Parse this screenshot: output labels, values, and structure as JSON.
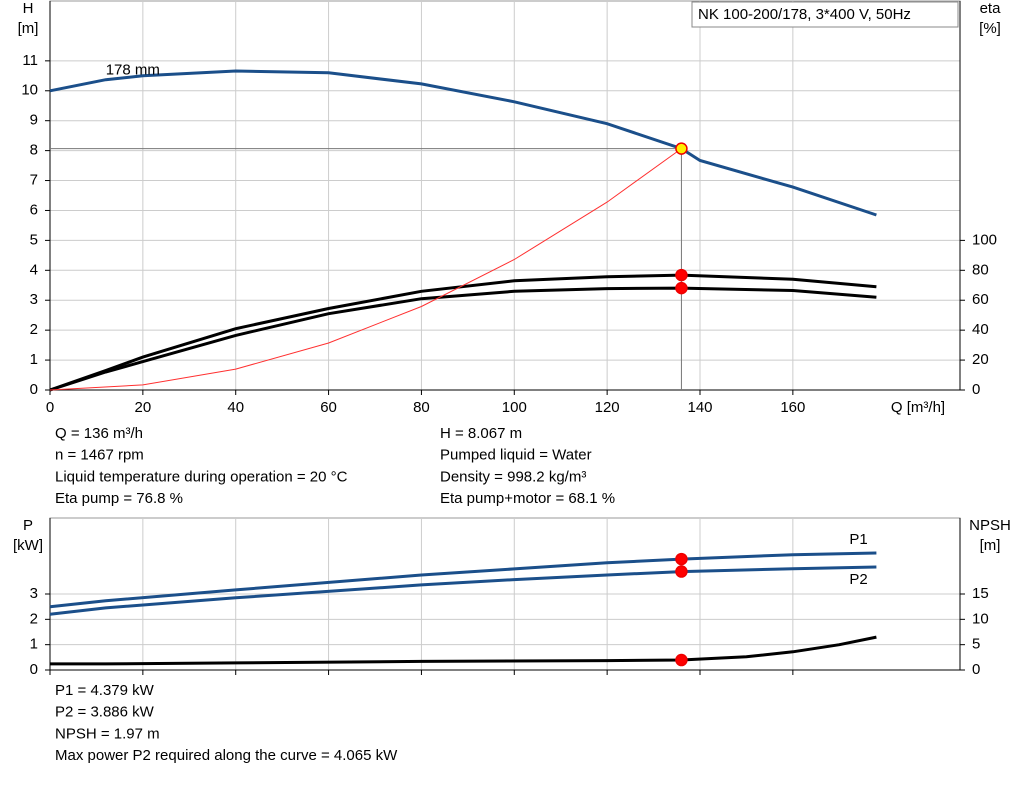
{
  "chart_data": [
    {
      "type": "line",
      "title": "NK 100-200/178, 3*400 V, 50Hz",
      "x_label": "Q [m³/h]",
      "y_label": [
        "H",
        "[m]"
      ],
      "y2_label": [
        "eta",
        "[%]"
      ],
      "xlim": [
        0,
        196
      ],
      "xticks": [
        0,
        20,
        40,
        60,
        80,
        100,
        120,
        140,
        160
      ],
      "ylim": [
        0,
        13
      ],
      "yticks": [
        0,
        1,
        2,
        3,
        4,
        5,
        6,
        7,
        8,
        9,
        10,
        11
      ],
      "y2lim": [
        0,
        260
      ],
      "y2ticks": [
        0,
        20,
        40,
        60,
        80,
        100
      ],
      "grid": true,
      "duty_x": 136,
      "series": [
        {
          "name": "178 mm",
          "color": "#1b4f8a",
          "marker": "#ffee00",
          "x": [
            0,
            12,
            20,
            40,
            60,
            80,
            100,
            120,
            136,
            140,
            160,
            178
          ],
          "values": [
            10,
            10.37,
            10.5,
            10.66,
            10.6,
            10.23,
            9.63,
            8.9,
            8.067,
            7.67,
            6.78,
            5.85
          ]
        },
        {
          "color": "#000000",
          "axis": "y2",
          "marker": "#ff0000",
          "x": [
            0,
            12,
            20,
            40,
            60,
            80,
            100,
            120,
            136,
            160,
            178
          ],
          "values": [
            0,
            13,
            22,
            41,
            54.5,
            66,
            73,
            75.7,
            76.8,
            74,
            69
          ]
        },
        {
          "color": "#000000",
          "axis": "y2",
          "marker": "#ff0000",
          "x": [
            0,
            12,
            20,
            40,
            60,
            80,
            100,
            120,
            136,
            160,
            178
          ],
          "values": [
            0,
            12,
            19,
            36.5,
            51,
            61,
            66,
            67.8,
            68.1,
            66.5,
            62
          ]
        },
        {
          "color": "#ff3030",
          "x": [
            0,
            20,
            40,
            60,
            80,
            100,
            120,
            136
          ],
          "values": [
            0,
            0.17,
            0.7,
            1.57,
            2.79,
            4.36,
            6.28,
            8.067
          ]
        }
      ],
      "notes_left": [
        "Q = 136 m³/h",
        "n = 1467 rpm",
        "Liquid temperature during operation = 20 °C",
        "Eta pump = 76.8 %"
      ],
      "notes_right": [
        "H = 8.067 m",
        "Pumped liquid = Water",
        "Density = 998.2 kg/m³",
        "Eta pump+motor = 68.1 %"
      ]
    },
    {
      "type": "line",
      "y_label": [
        "P",
        "[kW]"
      ],
      "y2_label": [
        "NPSH",
        "[m]"
      ],
      "xlim": [
        0,
        196
      ],
      "ylim": [
        0,
        6
      ],
      "yticks": [
        0,
        1,
        2,
        3
      ],
      "y2lim": [
        0,
        30
      ],
      "y2ticks": [
        0,
        5,
        10,
        15
      ],
      "grid": true,
      "duty_x": 136,
      "series": [
        {
          "name": "P1",
          "color": "#1b4f8a",
          "marker": "#ff0000",
          "x": [
            0,
            12,
            40,
            80,
            100,
            120,
            136,
            160,
            178
          ],
          "values": [
            2.5,
            2.73,
            3.16,
            3.75,
            3.99,
            4.23,
            4.379,
            4.55,
            4.62
          ]
        },
        {
          "name": "P2",
          "color": "#1b4f8a",
          "marker": "#ff0000",
          "x": [
            0,
            12,
            40,
            80,
            100,
            120,
            136,
            160,
            178
          ],
          "values": [
            2.2,
            2.45,
            2.85,
            3.36,
            3.57,
            3.75,
            3.886,
            4.0,
            4.065
          ]
        },
        {
          "color": "#000000",
          "axis": "y2",
          "marker": "#ff0000",
          "x": [
            0,
            12,
            40,
            80,
            120,
            136,
            150,
            160,
            170,
            178
          ],
          "values": [
            1.2,
            1.2,
            1.4,
            1.7,
            1.85,
            1.97,
            2.6,
            3.6,
            5.0,
            6.5
          ]
        }
      ],
      "notes": [
        "P1 = 4.379 kW",
        "P2 = 3.886 kW",
        "NPSH = 1.97 m",
        "Max power P2 required along the curve = 4.065 kW"
      ]
    }
  ]
}
